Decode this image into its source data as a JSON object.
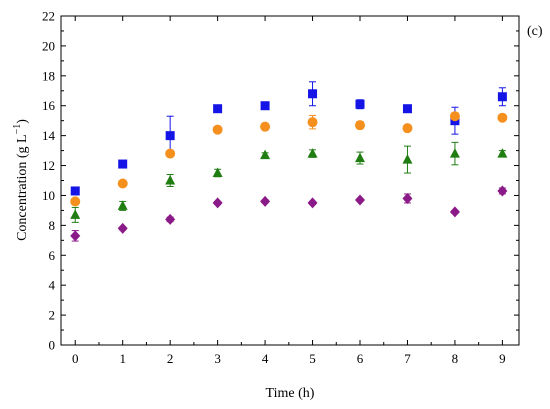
{
  "chart_data": {
    "type": "scatter",
    "panel_label": "(c)",
    "xlabel": "Time (h)",
    "ylabel_main": "Concentration (g L",
    "ylabel_sup": "−1",
    "ylabel_close": ")",
    "xlim": [
      -0.3,
      9.35
    ],
    "ylim": [
      0,
      22
    ],
    "xticks": [
      0,
      1,
      2,
      3,
      4,
      5,
      6,
      7,
      8,
      9
    ],
    "yticks": [
      0,
      2,
      4,
      6,
      8,
      10,
      12,
      14,
      16,
      18,
      20,
      22
    ],
    "grid": false,
    "legend": "none",
    "series": [
      {
        "marker": "square",
        "color": "#1414e6",
        "x": [
          0,
          1,
          2,
          3,
          4,
          5,
          6,
          7,
          8,
          9
        ],
        "y": [
          10.3,
          12.1,
          14.0,
          15.8,
          16.0,
          16.8,
          16.1,
          15.8,
          15.0,
          16.6
        ],
        "err": [
          0.15,
          0.15,
          1.3,
          0.15,
          0.15,
          0.8,
          0.3,
          0.25,
          0.9,
          0.6
        ]
      },
      {
        "marker": "circle",
        "color": "#f5901e",
        "x": [
          0,
          1,
          2,
          3,
          4,
          5,
          6,
          7,
          8,
          9
        ],
        "y": [
          9.6,
          10.8,
          12.8,
          14.4,
          14.6,
          14.9,
          14.7,
          14.5,
          15.3,
          15.2
        ],
        "err": [
          0.15,
          0.2,
          0.2,
          0.15,
          0.15,
          0.45,
          0.25,
          0.15,
          0.2,
          0.15
        ]
      },
      {
        "marker": "triangle",
        "color": "#1f7d12",
        "x": [
          0,
          1,
          2,
          3,
          4,
          5,
          6,
          7,
          8,
          9
        ],
        "y": [
          8.7,
          9.3,
          11.0,
          11.5,
          12.7,
          12.8,
          12.5,
          12.4,
          12.8,
          12.8
        ],
        "err": [
          0.5,
          0.3,
          0.4,
          0.25,
          0.15,
          0.25,
          0.4,
          0.9,
          0.75,
          0.2
        ]
      },
      {
        "marker": "diamond",
        "color": "#8b1a89",
        "x": [
          0,
          1,
          2,
          3,
          4,
          5,
          6,
          7,
          8,
          9
        ],
        "y": [
          7.3,
          7.8,
          8.4,
          9.5,
          9.6,
          9.5,
          9.7,
          9.8,
          8.9,
          10.3
        ],
        "err": [
          0.35,
          0.1,
          0.15,
          0.1,
          0.1,
          0.1,
          0.1,
          0.3,
          0.1,
          0.2
        ]
      }
    ]
  }
}
